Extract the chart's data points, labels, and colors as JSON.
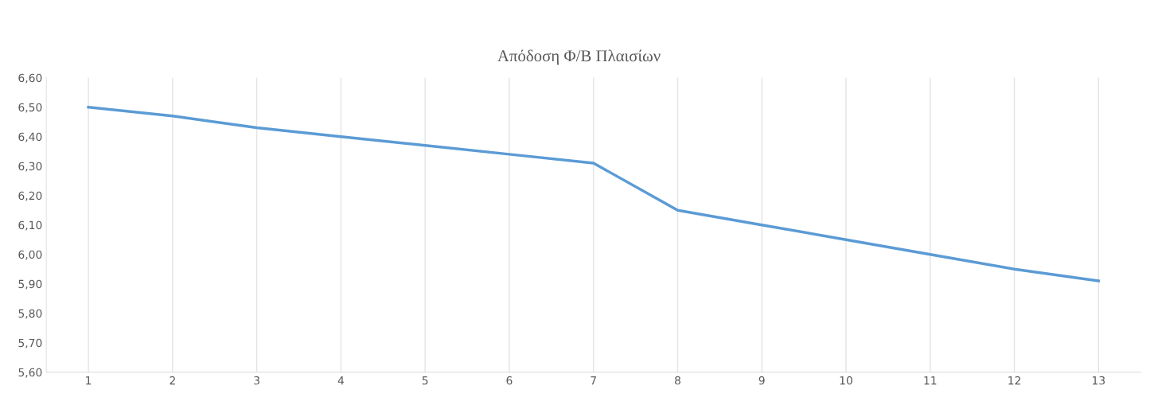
{
  "chart_data": {
    "type": "line",
    "title": "Απόδοση Φ/Β Πλαισίων",
    "categories": [
      "1",
      "2",
      "3",
      "4",
      "5",
      "6",
      "7",
      "8",
      "9",
      "10",
      "11",
      "12",
      "13"
    ],
    "series": [
      {
        "color": "#5b9bd5",
        "values": [
          6.5,
          6.47,
          6.43,
          6.4,
          6.37,
          6.34,
          6.31,
          6.15,
          6.1,
          6.05,
          6.0,
          5.95,
          5.91
        ]
      }
    ],
    "ylim": [
      5.6,
      6.6
    ],
    "yticks": [
      {
        "value": 5.6,
        "label": "5,60"
      },
      {
        "value": 5.7,
        "label": "5,70"
      },
      {
        "value": 5.8,
        "label": "5,80"
      },
      {
        "value": 5.9,
        "label": "5,90"
      },
      {
        "value": 6.0,
        "label": "6,00"
      },
      {
        "value": 6.1,
        "label": "6,10"
      },
      {
        "value": 6.2,
        "label": "6,20"
      },
      {
        "value": 6.3,
        "label": "6,30"
      },
      {
        "value": 6.4,
        "label": "6,40"
      },
      {
        "value": 6.5,
        "label": "6,50"
      },
      {
        "value": 6.6,
        "label": "6,60"
      }
    ],
    "grid": "x",
    "marker": "none",
    "line_style": "solid"
  }
}
